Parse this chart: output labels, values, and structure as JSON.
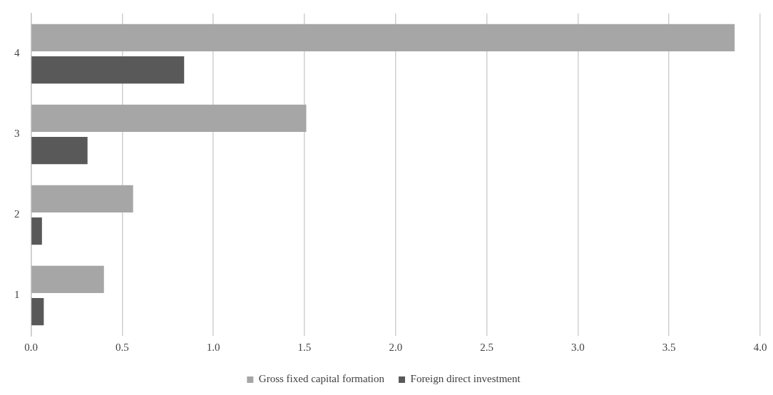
{
  "chart_data": {
    "type": "bar",
    "orientation": "horizontal",
    "categories": [
      "4",
      "3",
      "2",
      "1"
    ],
    "series": [
      {
        "name": "Gross fixed capital formation",
        "color": "#a6a6a6",
        "values": [
          3.86,
          1.51,
          0.56,
          0.4
        ]
      },
      {
        "name": "Foreign direct investment",
        "color": "#595959",
        "values": [
          0.84,
          0.31,
          0.06,
          0.07
        ]
      }
    ],
    "xlim": [
      0,
      4
    ],
    "xticks": [
      {
        "value": 0,
        "label": "0.0"
      },
      {
        "value": 0.5,
        "label": "0.5"
      },
      {
        "value": 1,
        "label": "1.0"
      },
      {
        "value": 1.5,
        "label": "1.5"
      },
      {
        "value": 2,
        "label": "2.0"
      },
      {
        "value": 2.5,
        "label": "2.5"
      },
      {
        "value": 3,
        "label": "3.0"
      },
      {
        "value": 3.5,
        "label": "3.5"
      },
      {
        "value": 4,
        "label": "4.0"
      }
    ],
    "grid": "x",
    "legend": "bottom"
  }
}
